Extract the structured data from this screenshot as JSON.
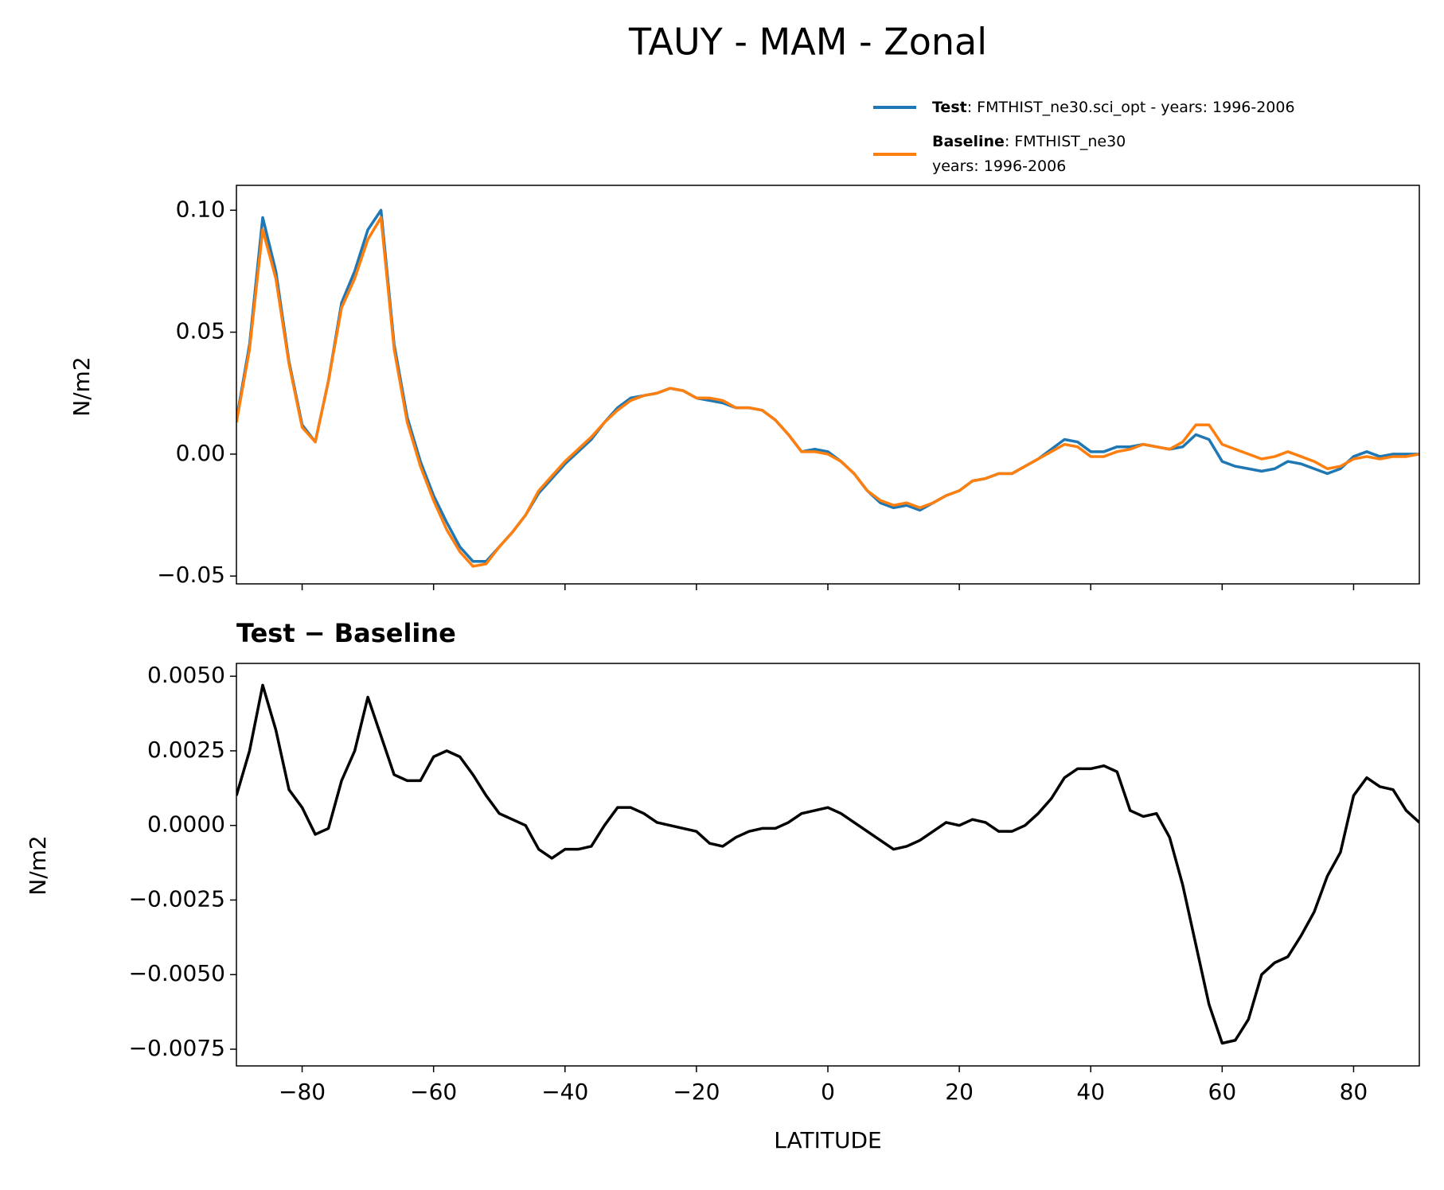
{
  "title": "TAUY - MAM - Zonal",
  "chart_data": [
    {
      "type": "line",
      "ylabel": "N/m2",
      "x": [
        -90,
        -88,
        -86,
        -84,
        -82,
        -80,
        -78,
        -76,
        -74,
        -72,
        -70,
        -68,
        -66,
        -64,
        -62,
        -60,
        -58,
        -56,
        -54,
        -52,
        -50,
        -48,
        -46,
        -44,
        -42,
        -40,
        -38,
        -36,
        -34,
        -32,
        -30,
        -28,
        -26,
        -24,
        -22,
        -20,
        -18,
        -16,
        -14,
        -12,
        -10,
        -8,
        -6,
        -4,
        -2,
        0,
        2,
        4,
        6,
        8,
        10,
        12,
        14,
        16,
        18,
        20,
        22,
        24,
        26,
        28,
        30,
        32,
        34,
        36,
        38,
        40,
        42,
        44,
        46,
        48,
        50,
        52,
        54,
        56,
        58,
        60,
        62,
        64,
        66,
        68,
        70,
        72,
        74,
        76,
        78,
        80,
        82,
        84,
        86,
        88,
        90
      ],
      "series": [
        {
          "name": "Test",
          "description": [
            ": FMTHIST_ne30.sci_opt - years: 1996-2006"
          ],
          "color": "#1f77b4",
          "values": [
            0.014,
            0.045,
            0.097,
            0.075,
            0.038,
            0.012,
            0.005,
            0.03,
            0.062,
            0.075,
            0.092,
            0.1,
            0.045,
            0.015,
            -0.003,
            -0.017,
            -0.028,
            -0.038,
            -0.044,
            -0.044,
            -0.038,
            -0.032,
            -0.025,
            -0.016,
            -0.01,
            -0.004,
            0.001,
            0.006,
            0.013,
            0.019,
            0.023,
            0.024,
            0.025,
            0.027,
            0.026,
            0.023,
            0.022,
            0.021,
            0.019,
            0.019,
            0.018,
            0.014,
            0.008,
            0.001,
            0.002,
            0.001,
            -0.003,
            -0.008,
            -0.015,
            -0.02,
            -0.022,
            -0.021,
            -0.023,
            -0.02,
            -0.017,
            -0.015,
            -0.011,
            -0.01,
            -0.008,
            -0.008,
            -0.005,
            -0.002,
            0.002,
            0.006,
            0.005,
            0.001,
            0.001,
            0.003,
            0.003,
            0.004,
            0.003,
            0.002,
            0.003,
            0.008,
            0.006,
            -0.003,
            -0.005,
            -0.006,
            -0.007,
            -0.006,
            -0.003,
            -0.004,
            -0.006,
            -0.008,
            -0.006,
            -0.001,
            0.001,
            -0.001,
            0.0,
            0.0,
            0.0
          ]
        },
        {
          "name": "Baseline",
          "description": [
            ": FMTHIST_ne30",
            "years: 1996-2006"
          ],
          "color": "#ff7f0e",
          "values": [
            0.013,
            0.043,
            0.092,
            0.072,
            0.037,
            0.011,
            0.005,
            0.03,
            0.06,
            0.072,
            0.088,
            0.097,
            0.043,
            0.013,
            -0.005,
            -0.019,
            -0.031,
            -0.04,
            -0.046,
            -0.045,
            -0.038,
            -0.032,
            -0.025,
            -0.015,
            -0.009,
            -0.003,
            0.002,
            0.007,
            0.013,
            0.018,
            0.022,
            0.024,
            0.025,
            0.027,
            0.026,
            0.023,
            0.023,
            0.022,
            0.019,
            0.019,
            0.018,
            0.014,
            0.008,
            0.001,
            0.001,
            0.0,
            -0.003,
            -0.008,
            -0.015,
            -0.019,
            -0.021,
            -0.02,
            -0.022,
            -0.02,
            -0.017,
            -0.015,
            -0.011,
            -0.01,
            -0.008,
            -0.008,
            -0.005,
            -0.002,
            0.001,
            0.004,
            0.003,
            -0.001,
            -0.001,
            0.001,
            0.002,
            0.004,
            0.003,
            0.002,
            0.005,
            0.012,
            0.012,
            0.004,
            0.002,
            0.0,
            -0.002,
            -0.001,
            0.001,
            -0.001,
            -0.003,
            -0.006,
            -0.005,
            -0.002,
            -0.001,
            -0.002,
            -0.001,
            -0.001,
            0.0
          ]
        }
      ],
      "xlim": [
        -90,
        90
      ],
      "xticks": [
        -80,
        -60,
        -40,
        -20,
        0,
        20,
        40,
        60,
        80
      ],
      "show_xtick_labels": false,
      "ylim": [
        -0.0532,
        0.1102
      ],
      "yticks": [
        {
          "value": -0.05,
          "label": "−0.05"
        },
        {
          "value": 0,
          "label": "0.00"
        },
        0.05,
        {
          "value": 0.1,
          "label": "0.10"
        }
      ],
      "legend": "upper right"
    },
    {
      "type": "line",
      "title": "Test − Baseline",
      "xlabel": "LATITUDE",
      "ylabel": "N/m2",
      "color": "#000000",
      "x": [
        -90,
        -88,
        -86,
        -84,
        -82,
        -80,
        -78,
        -76,
        -74,
        -72,
        -70,
        -68,
        -66,
        -64,
        -62,
        -60,
        -58,
        -56,
        -54,
        -52,
        -50,
        -48,
        -46,
        -44,
        -42,
        -40,
        -38,
        -36,
        -34,
        -32,
        -30,
        -28,
        -26,
        -24,
        -22,
        -20,
        -18,
        -16,
        -14,
        -12,
        -10,
        -8,
        -6,
        -4,
        -2,
        0,
        2,
        4,
        6,
        8,
        10,
        12,
        14,
        16,
        18,
        20,
        22,
        24,
        26,
        28,
        30,
        32,
        34,
        36,
        38,
        40,
        42,
        44,
        46,
        48,
        50,
        52,
        54,
        56,
        58,
        60,
        62,
        64,
        66,
        68,
        70,
        72,
        74,
        76,
        78,
        80,
        82,
        84,
        86,
        88,
        90
      ],
      "values": [
        0.001,
        0.0025,
        0.0047,
        0.0032,
        0.0012,
        0.0006,
        -0.0003,
        -0.0001,
        0.0015,
        0.0025,
        0.0043,
        0.003,
        0.0017,
        0.0015,
        0.0015,
        0.0023,
        0.0025,
        0.0023,
        0.0017,
        0.001,
        0.0004,
        0.0002,
        0.0,
        -0.0008,
        -0.0011,
        -0.0008,
        -0.0008,
        -0.0007,
        0.0,
        0.0006,
        0.0006,
        0.0004,
        0.0001,
        0.0,
        -0.0001,
        -0.0002,
        -0.0006,
        -0.0007,
        -0.0004,
        -0.0002,
        -0.0001,
        -0.0001,
        0.0001,
        0.0004,
        0.0005,
        0.0006,
        0.0004,
        0.0001,
        -0.0002,
        -0.0005,
        -0.0008,
        -0.0007,
        -0.0005,
        -0.0002,
        0.0001,
        0.0,
        0.0002,
        0.0001,
        -0.0002,
        -0.0002,
        0.0,
        0.0004,
        0.0009,
        0.0016,
        0.0019,
        0.0019,
        0.002,
        0.0018,
        0.0005,
        0.0003,
        0.0004,
        -0.0004,
        -0.002,
        -0.004,
        -0.006,
        -0.0073,
        -0.0072,
        -0.0065,
        -0.005,
        -0.0046,
        -0.0044,
        -0.0037,
        -0.0029,
        -0.0017,
        -0.0009,
        0.001,
        0.0016,
        0.0013,
        0.0012,
        0.0005,
        0.0001
      ],
      "xlim": [
        -90,
        90
      ],
      "xticks": [
        {
          "value": -80,
          "label": "−80"
        },
        {
          "value": -60,
          "label": "−60"
        },
        {
          "value": -40,
          "label": "−40"
        },
        {
          "value": -20,
          "label": "−20"
        },
        0,
        20,
        40,
        60,
        80
      ],
      "show_xtick_labels": true,
      "ylim": [
        -0.00806,
        0.00543
      ],
      "yticks": [
        {
          "value": -0.0075,
          "label": "−0.0075"
        },
        {
          "value": -0.005,
          "label": "−0.0050"
        },
        {
          "value": -0.0025,
          "label": "−0.0025"
        },
        {
          "value": 0,
          "label": "0.0000"
        },
        0.0025,
        {
          "value": 0.005,
          "label": "0.0050"
        }
      ]
    }
  ]
}
